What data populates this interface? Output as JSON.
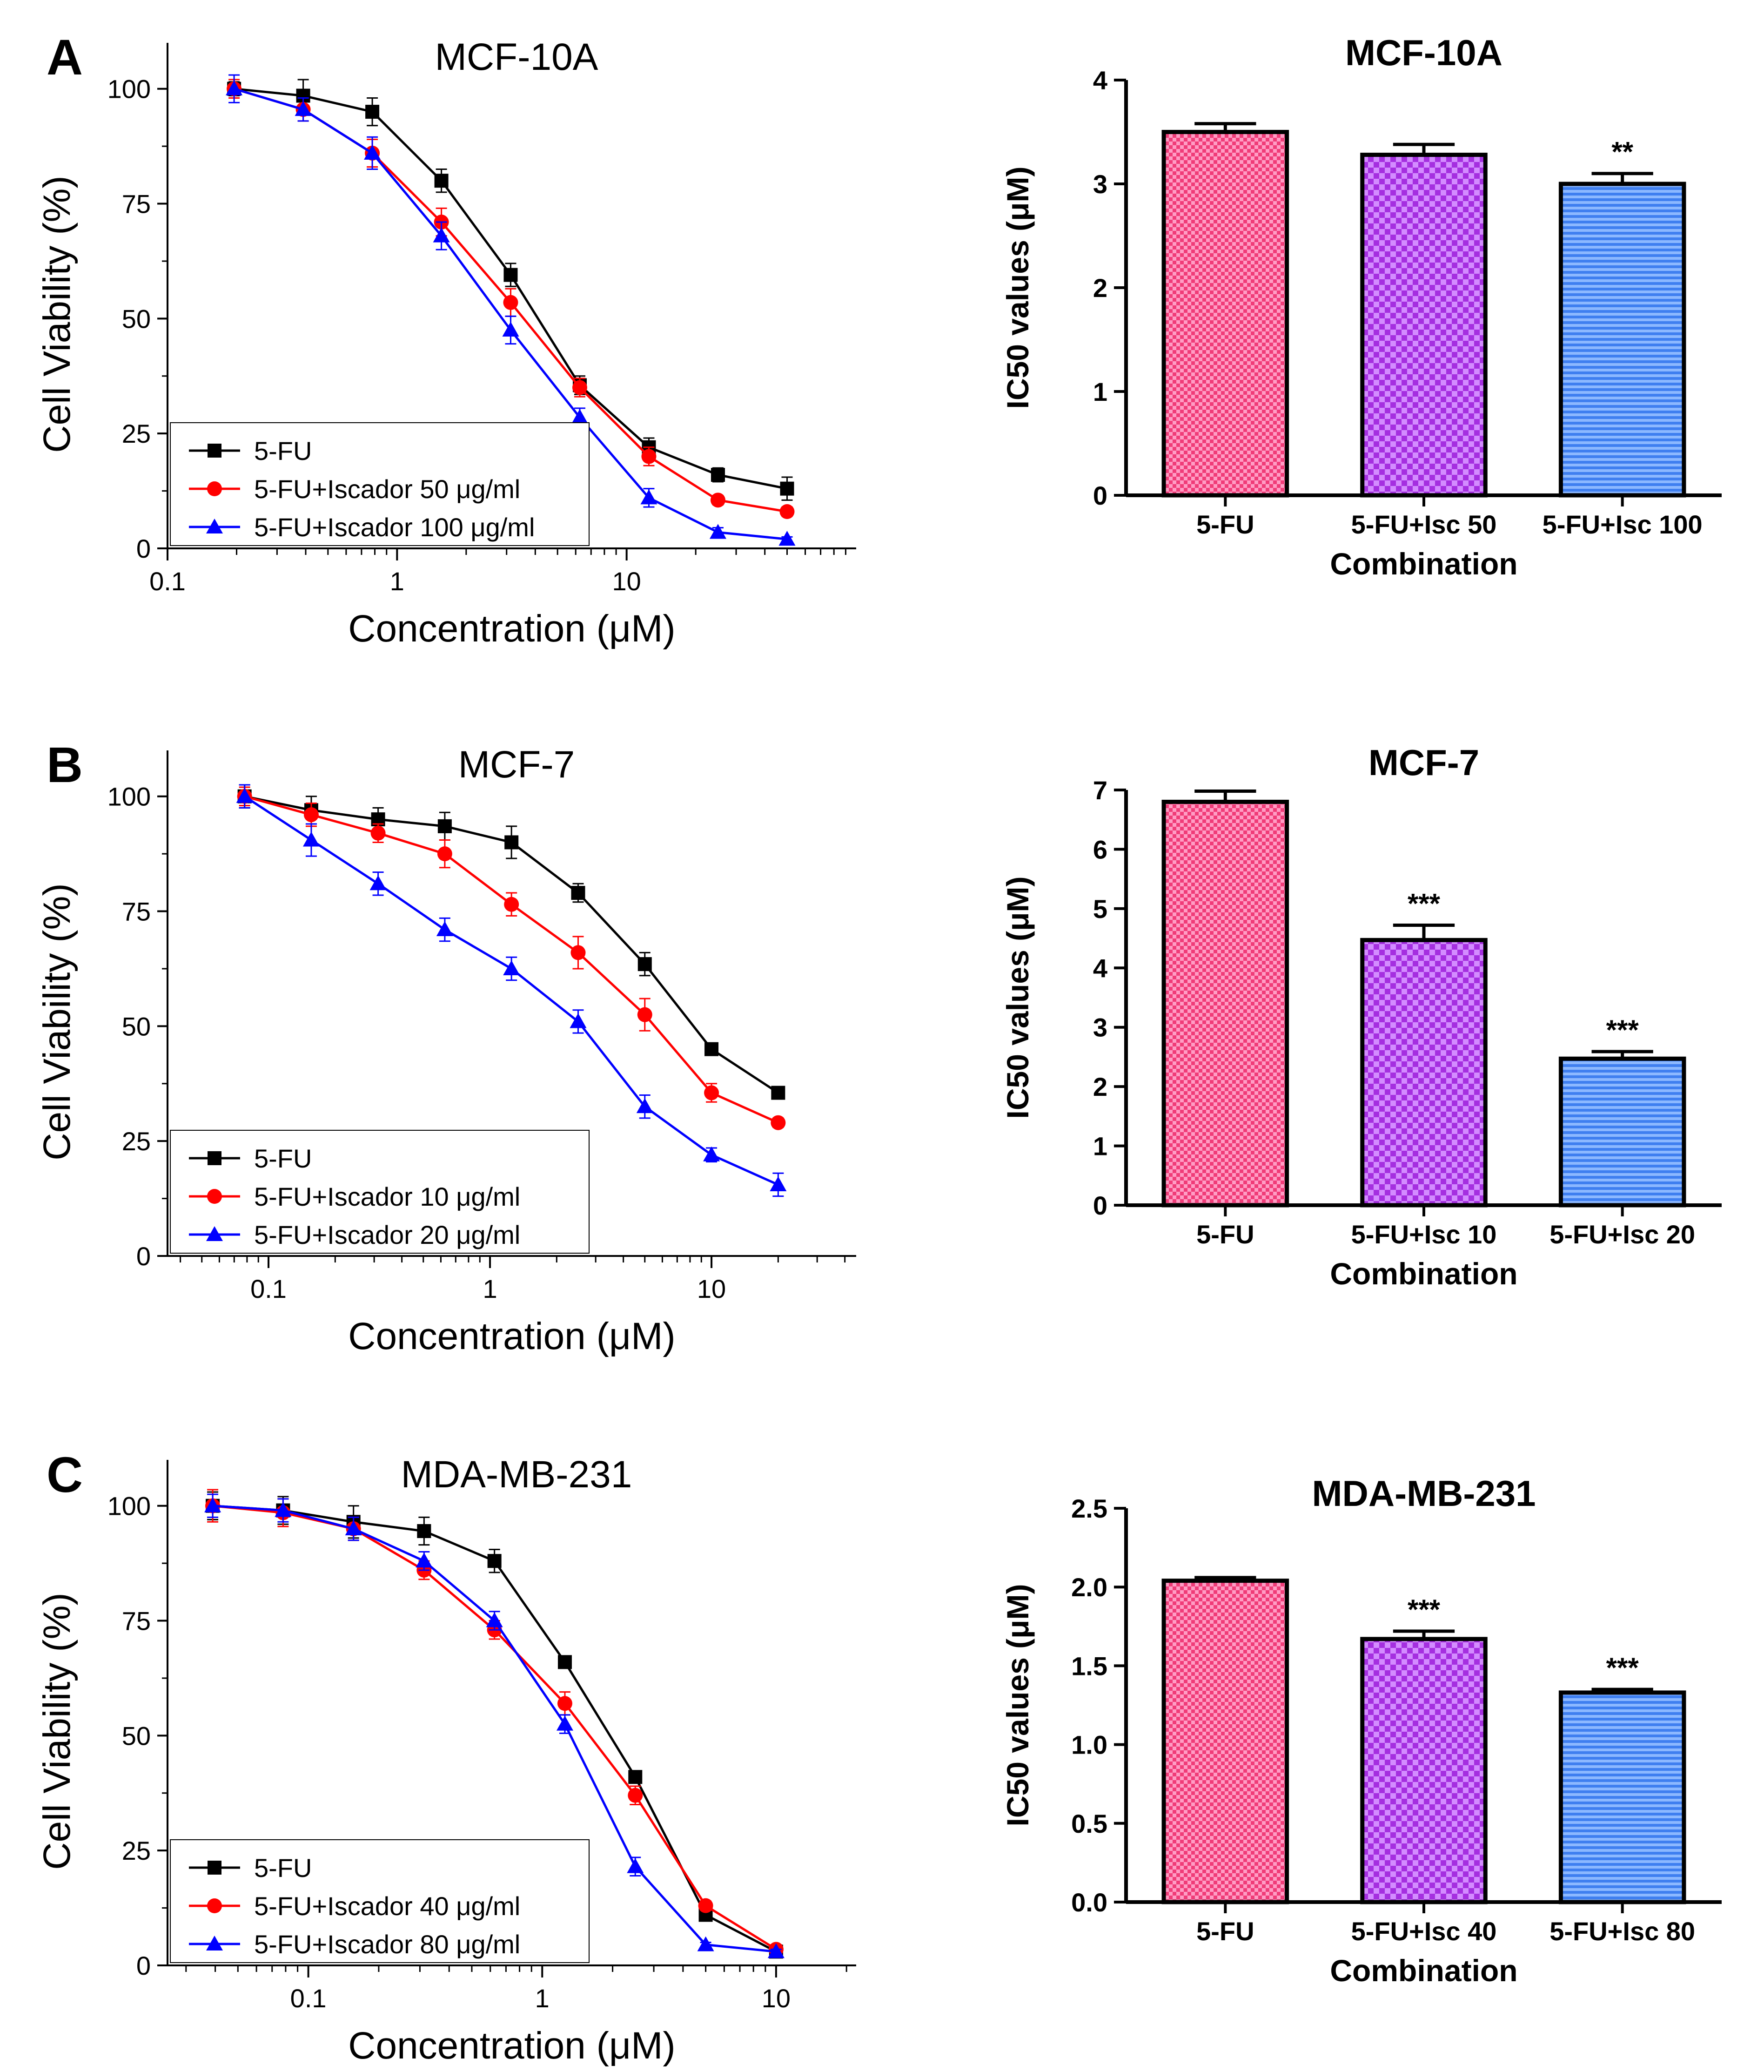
{
  "colors": {
    "series": [
      "#000000",
      "#ff0000",
      "#0000ff"
    ],
    "bars": [
      "#f03c78",
      "#b33cf0",
      "#4b8cf5"
    ]
  },
  "chart_data": [
    {
      "type": "line",
      "panel": "A",
      "title": "MCF-10A",
      "xscale": "log",
      "xlabel": "Concentration (μM)",
      "ylabel": "Cell Viability (%)",
      "xlim": [
        0.1,
        100
      ],
      "ylim": [
        0,
        110
      ],
      "xticks": [
        0.1,
        1,
        10
      ],
      "xtick_labels": [
        "0.1",
        "1",
        "10"
      ],
      "yticks": [
        0,
        25,
        50,
        75,
        100
      ],
      "ytick_labels": [
        "0",
        "25",
        "50",
        "75",
        "100"
      ],
      "legend_position": "bottom-left",
      "x": [
        0.195,
        0.39,
        0.78,
        1.56,
        3.125,
        6.25,
        12.5,
        25,
        50
      ],
      "series": [
        {
          "name": "5-FU",
          "marker": "square",
          "values": [
            100,
            98.5,
            95,
            80,
            59.5,
            35.5,
            22,
            16,
            13
          ],
          "errors": [
            1.5,
            3.5,
            3,
            2.5,
            2.5,
            2,
            2,
            1.5,
            2.5
          ]
        },
        {
          "name": "5-FU+Iscador 50 μg/ml",
          "marker": "circle",
          "values": [
            100,
            95.5,
            86,
            71,
            53.5,
            35,
            20,
            10.5,
            8
          ],
          "errors": [
            2,
            2.5,
            3,
            3,
            3,
            2,
            2,
            1,
            1
          ]
        },
        {
          "name": "5-FU+Iscador 100 μg/ml",
          "marker": "triangle",
          "values": [
            100,
            95.5,
            86,
            68,
            47.5,
            28.5,
            11,
            3.5,
            2
          ],
          "errors": [
            3,
            2.5,
            3.5,
            3,
            3,
            2,
            2,
            1,
            0.5
          ]
        }
      ]
    },
    {
      "type": "bar",
      "panel": "A",
      "title": "MCF-10A",
      "xlabel": "Combination",
      "ylabel": "IC50 values (μM)",
      "ylim": [
        0,
        4
      ],
      "yticks": [
        0,
        1,
        2,
        3,
        4
      ],
      "ytick_labels": [
        "0",
        "1",
        "2",
        "3",
        "4"
      ],
      "categories": [
        "5-FU",
        "5-FU+Isc 50",
        "5-FU+Isc 100"
      ],
      "values": [
        3.5,
        3.28,
        3.0
      ],
      "errors": [
        0.08,
        0.1,
        0.1
      ],
      "significance": [
        "",
        "",
        "**"
      ]
    },
    {
      "type": "line",
      "panel": "B",
      "title": "MCF-7",
      "xscale": "log",
      "xlabel": "Concentration (μM)",
      "ylabel": "Cell Viability (%)",
      "xlim": [
        0.035,
        45
      ],
      "ylim": [
        0,
        110
      ],
      "xticks": [
        0.1,
        1,
        10
      ],
      "xtick_labels": [
        "0.1",
        "1",
        "10"
      ],
      "yticks": [
        0,
        25,
        50,
        75,
        100
      ],
      "ytick_labels": [
        "0",
        "25",
        "50",
        "75",
        "100"
      ],
      "legend_position": "bottom-left",
      "x": [
        0.078,
        0.156,
        0.3125,
        0.625,
        1.25,
        2.5,
        5,
        10,
        20
      ],
      "series": [
        {
          "name": "5-FU",
          "marker": "square",
          "values": [
            100,
            97,
            95,
            93.5,
            90,
            79,
            63.5,
            45,
            35.5
          ],
          "errors": [
            2.5,
            3,
            2.5,
            3,
            3.5,
            2,
            2.5,
            1,
            1
          ]
        },
        {
          "name": "5-FU+Iscador 10 μg/ml",
          "marker": "circle",
          "values": [
            100,
            96,
            92,
            87.5,
            76.5,
            66,
            52.5,
            35.5,
            29
          ],
          "errors": [
            2,
            2.5,
            2,
            3,
            2.5,
            3.5,
            3.5,
            2,
            1
          ]
        },
        {
          "name": "5-FU+Iscador 20 μg/ml",
          "marker": "triangle",
          "values": [
            100,
            90.5,
            81,
            71,
            62.5,
            51,
            32.5,
            22,
            15.5
          ],
          "errors": [
            2.5,
            3.5,
            2.5,
            2.5,
            2.5,
            2.5,
            2.5,
            1.5,
            2.5
          ]
        }
      ]
    },
    {
      "type": "bar",
      "panel": "B",
      "title": "MCF-7",
      "xlabel": "Combination",
      "ylabel": "IC50 values (μM)",
      "ylim": [
        0,
        7
      ],
      "yticks": [
        0,
        1,
        2,
        3,
        4,
        5,
        6,
        7
      ],
      "ytick_labels": [
        "0",
        "1",
        "2",
        "3",
        "4",
        "5",
        "6",
        "7"
      ],
      "categories": [
        "5-FU",
        "5-FU+Isc 10",
        "5-FU+Isc 20"
      ],
      "values": [
        6.8,
        4.47,
        2.47
      ],
      "errors": [
        0.18,
        0.25,
        0.12
      ],
      "significance": [
        "",
        "***",
        "***"
      ]
    },
    {
      "type": "line",
      "panel": "C",
      "title": "MDA-MB-231",
      "xscale": "log",
      "xlabel": "Concentration (μM)",
      "ylabel": "Cell Viability (%)",
      "xlim": [
        0.025,
        22
      ],
      "ylim": [
        0,
        110
      ],
      "xticks": [
        0.1,
        1,
        10
      ],
      "xtick_labels": [
        "0.1",
        "1",
        "10"
      ],
      "yticks": [
        0,
        25,
        50,
        75,
        100
      ],
      "ytick_labels": [
        "0",
        "25",
        "50",
        "75",
        "100"
      ],
      "legend_position": "bottom-left",
      "x": [
        0.039,
        0.078,
        0.156,
        0.3125,
        0.625,
        1.25,
        2.5,
        5,
        10
      ],
      "series": [
        {
          "name": "5-FU",
          "marker": "square",
          "values": [
            100,
            99,
            96.5,
            94.5,
            88,
            66,
            41,
            11,
            3
          ],
          "errors": [
            3,
            3,
            3.5,
            3,
            2.5,
            1,
            1,
            1,
            1
          ]
        },
        {
          "name": "5-FU+Iscador 40 μg/ml",
          "marker": "circle",
          "values": [
            100,
            98.5,
            95,
            86,
            73,
            57,
            37,
            13,
            3.5
          ],
          "errors": [
            3.5,
            3,
            2.5,
            2,
            2,
            2.5,
            2,
            1,
            1
          ]
        },
        {
          "name": "5-FU+Iscador 80 μg/ml",
          "marker": "triangle",
          "values": [
            100,
            99,
            95,
            88,
            75,
            52.5,
            21.5,
            4.5,
            3
          ],
          "errors": [
            2.5,
            2.5,
            2.5,
            2,
            2,
            2,
            2,
            0.5,
            0.5
          ]
        }
      ]
    },
    {
      "type": "bar",
      "panel": "C",
      "title": "MDA-MB-231",
      "xlabel": "Combination",
      "ylabel": "IC50 values (μM)",
      "ylim": [
        0,
        2.5
      ],
      "yticks": [
        0,
        0.5,
        1,
        1.5,
        2,
        2.5
      ],
      "ytick_labels": [
        "0.0",
        "0.5",
        "1.0",
        "1.5",
        "2.0",
        "2.5"
      ],
      "categories": [
        "5-FU",
        "5-FU+Isc 40",
        "5-FU+Isc 80"
      ],
      "values": [
        2.04,
        1.67,
        1.33
      ],
      "errors": [
        0.02,
        0.05,
        0.02
      ],
      "significance": [
        "",
        "***",
        "***"
      ]
    }
  ]
}
